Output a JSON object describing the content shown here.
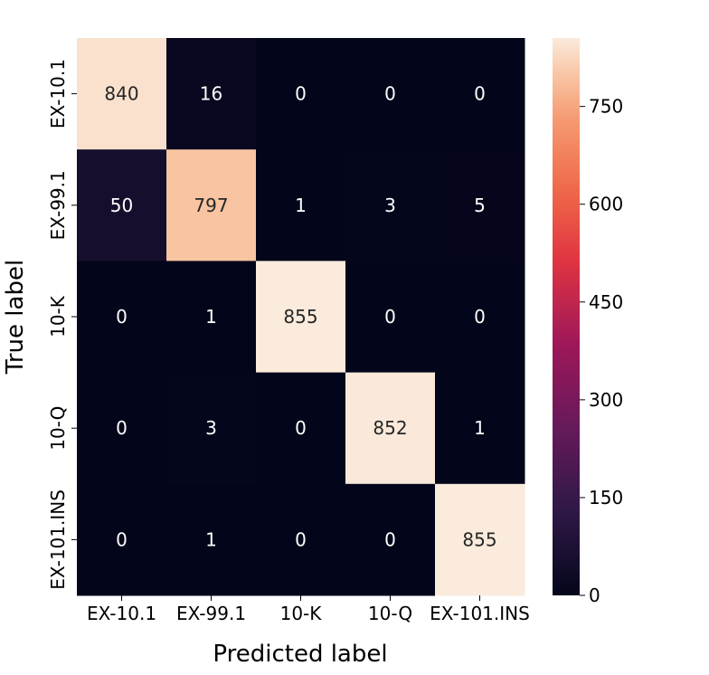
{
  "chart_data": {
    "type": "heatmap",
    "title": "",
    "xlabel": "Predicted label",
    "ylabel": "True label",
    "x_categories": [
      "EX-10.1",
      "EX-99.1",
      "10-K",
      "10-Q",
      "EX-101.INS"
    ],
    "y_categories": [
      "EX-10.1",
      "EX-99.1",
      "10-K",
      "10-Q",
      "EX-101.INS"
    ],
    "values": [
      [
        840,
        16,
        0,
        0,
        0
      ],
      [
        50,
        797,
        1,
        3,
        5
      ],
      [
        0,
        1,
        855,
        0,
        0
      ],
      [
        0,
        3,
        0,
        852,
        1
      ],
      [
        0,
        1,
        0,
        0,
        855
      ]
    ],
    "colorbar": {
      "min": 0,
      "max": 855,
      "ticks": [
        0,
        150,
        300,
        450,
        600,
        750
      ],
      "colormap": "rocket"
    }
  }
}
